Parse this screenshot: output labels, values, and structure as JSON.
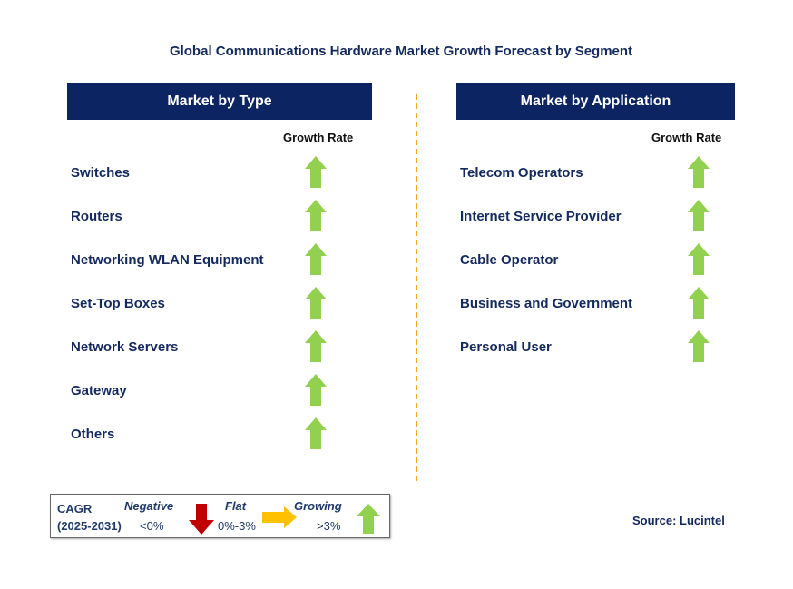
{
  "title": "Global Communications Hardware Market Growth Forecast by Segment",
  "left": {
    "header": "Market by Type",
    "growth_rate_label": "Growth Rate",
    "items": [
      {
        "label": "Switches",
        "trend": "growing"
      },
      {
        "label": "Routers",
        "trend": "growing"
      },
      {
        "label": "Networking WLAN Equipment",
        "trend": "growing"
      },
      {
        "label": "Set-Top Boxes",
        "trend": "growing"
      },
      {
        "label": "Network Servers",
        "trend": "growing"
      },
      {
        "label": "Gateway",
        "trend": "growing"
      },
      {
        "label": "Others",
        "trend": "growing"
      }
    ]
  },
  "right": {
    "header": "Market by Application",
    "growth_rate_label": "Growth Rate",
    "items": [
      {
        "label": "Telecom Operators",
        "trend": "growing"
      },
      {
        "label": "Internet Service Provider",
        "trend": "growing"
      },
      {
        "label": "Cable Operator",
        "trend": "growing"
      },
      {
        "label": "Business and Government",
        "trend": "growing"
      },
      {
        "label": "Personal User",
        "trend": "growing"
      }
    ]
  },
  "legend": {
    "cagr": "CAGR",
    "period": "(2025-2031)",
    "negative": "Negative",
    "negative_range": "<0%",
    "flat": "Flat",
    "flat_range": "0%-3%",
    "growing": "Growing",
    "growing_range": ">3%"
  },
  "source": "Source: Lucintel",
  "colors": {
    "header": "#0c2461",
    "growing": "#92d050",
    "flat": "#ffc000",
    "negative": "#c00000",
    "divider": "#f5a623"
  }
}
